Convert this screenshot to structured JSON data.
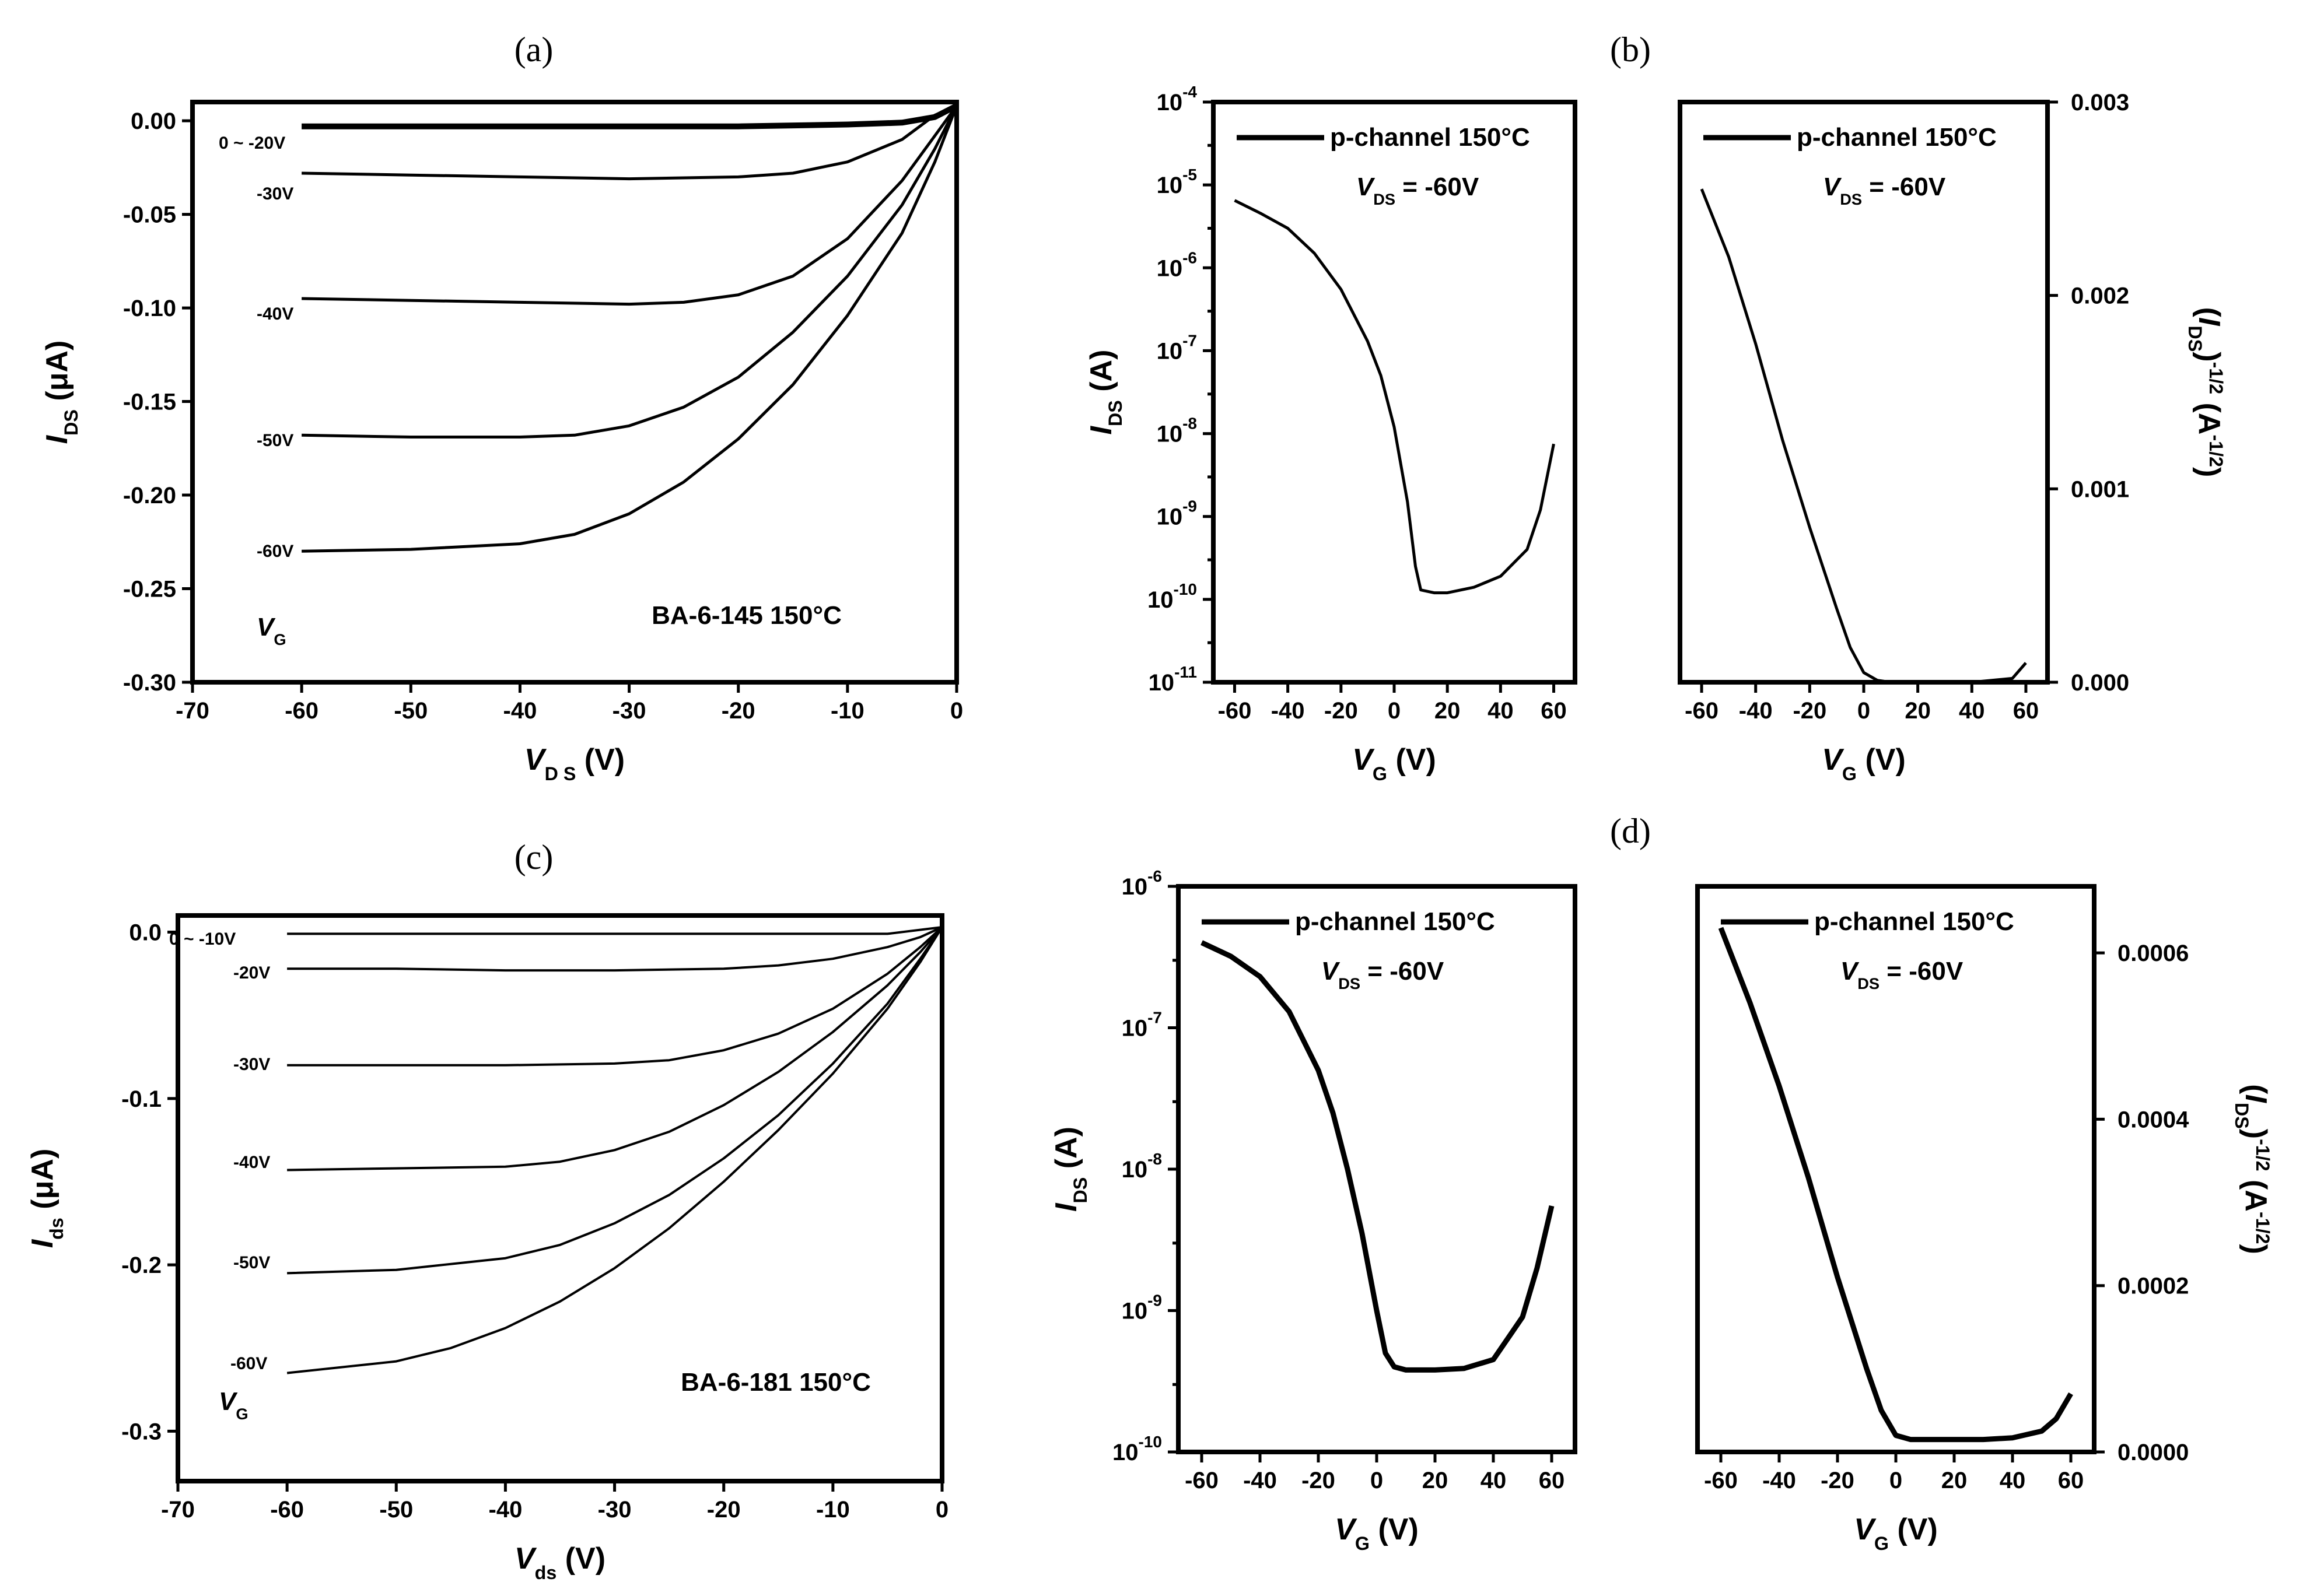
{
  "chart_data": [
    {
      "id": "a",
      "panel_label": "(a)",
      "type": "line",
      "title": "",
      "xlabel": {
        "main": "V",
        "sub": "D S",
        "unit": " (V)"
      },
      "ylabel": {
        "main": "I",
        "sub": "DS",
        "unit": " (μA)"
      },
      "xlim": [
        -70,
        0
      ],
      "ylim": [
        -0.3,
        0.01
      ],
      "xticks": [
        -70,
        -60,
        -50,
        -40,
        -30,
        -20,
        -10,
        0
      ],
      "xtick_labels": [
        "-70",
        "-60",
        "-50",
        "-40",
        "-30",
        "-20",
        "-10",
        "0"
      ],
      "yticks": [
        0.0,
        -0.05,
        -0.1,
        -0.15,
        -0.2,
        -0.25,
        -0.3
      ],
      "ytick_labels": [
        "0.00",
        "-0.05",
        "-0.10",
        "-0.15",
        "-0.20",
        "-0.25",
        "-0.30"
      ],
      "annotations": [
        "BA-6-145 150°C"
      ],
      "gate_label": {
        "main": "V",
        "sub": "G"
      },
      "series": [
        {
          "name": "0 ~ -20V",
          "x": [
            -60,
            -50,
            -40,
            -30,
            -20,
            -10,
            -5,
            -2,
            0
          ],
          "y": [
            -0.003,
            -0.003,
            -0.003,
            -0.003,
            -0.003,
            -0.002,
            -0.001,
            0.002,
            0.008
          ]
        },
        {
          "name": "-30V",
          "x": [
            -60,
            -50,
            -40,
            -30,
            -20,
            -15,
            -10,
            -5,
            -2,
            0
          ],
          "y": [
            -0.028,
            -0.029,
            -0.03,
            -0.031,
            -0.03,
            -0.028,
            -0.022,
            -0.01,
            0.003,
            0.008
          ]
        },
        {
          "name": "-40V",
          "x": [
            -60,
            -50,
            -40,
            -30,
            -25,
            -20,
            -15,
            -10,
            -5,
            -2,
            0
          ],
          "y": [
            -0.095,
            -0.096,
            -0.097,
            -0.098,
            -0.097,
            -0.093,
            -0.083,
            -0.063,
            -0.032,
            -0.008,
            0.008
          ]
        },
        {
          "name": "-50V",
          "x": [
            -60,
            -50,
            -40,
            -35,
            -30,
            -25,
            -20,
            -15,
            -10,
            -5,
            -2,
            0
          ],
          "y": [
            -0.168,
            -0.169,
            -0.169,
            -0.168,
            -0.163,
            -0.153,
            -0.137,
            -0.113,
            -0.083,
            -0.045,
            -0.015,
            0.008
          ]
        },
        {
          "name": "-60V",
          "x": [
            -60,
            -50,
            -40,
            -35,
            -30,
            -25,
            -20,
            -15,
            -10,
            -5,
            -2,
            0
          ],
          "y": [
            -0.23,
            -0.229,
            -0.226,
            -0.221,
            -0.21,
            -0.193,
            -0.17,
            -0.141,
            -0.104,
            -0.06,
            -0.022,
            0.008
          ]
        }
      ]
    },
    {
      "id": "b-left",
      "panel_label": "(b)",
      "type": "line",
      "title": "",
      "xlabel": {
        "main": "V",
        "sub": "G",
        "unit": " (V)"
      },
      "ylabel": {
        "main": "I",
        "sub": "DS",
        "unit": " (A)"
      },
      "yscale": "log",
      "xlim": [
        -68,
        68
      ],
      "ylim_exp": [
        -11,
        -4
      ],
      "xticks": [
        -60,
        -40,
        -20,
        0,
        20,
        40,
        60
      ],
      "xtick_labels": [
        "-60",
        "-40",
        "-20",
        "0",
        "20",
        "40",
        "60"
      ],
      "yticks_exp": [
        -11,
        -10,
        -9,
        -8,
        -7,
        -6,
        -5,
        -4
      ],
      "ytick_labels": [
        "-11",
        "-10",
        "-9",
        "-8",
        "-7",
        "-6",
        "-5",
        "-4"
      ],
      "ytick_base": "10",
      "legend": "p-channel 150°C",
      "annotation": {
        "main": "V",
        "sub": "DS",
        "rest": " = -60V"
      },
      "series": [
        {
          "name": "p-channel 150°C",
          "x": [
            -60,
            -50,
            -40,
            -30,
            -20,
            -10,
            -5,
            0,
            5,
            8,
            10,
            15,
            20,
            30,
            40,
            50,
            55,
            60
          ],
          "y": [
            6.5e-06,
            4.5e-06,
            3e-06,
            1.5e-06,
            5.5e-07,
            1.3e-07,
            5e-08,
            1.2e-08,
            1.5e-09,
            2.5e-10,
            1.3e-10,
            1.2e-10,
            1.2e-10,
            1.4e-10,
            1.9e-10,
            4e-10,
            1.2e-09,
            7.5e-09
          ]
        }
      ]
    },
    {
      "id": "b-right",
      "panel_label": "",
      "type": "line",
      "title": "",
      "xlabel": {
        "main": "V",
        "sub": "G",
        "unit": " (V)"
      },
      "ylabel": {
        "open": "(",
        "main": "I",
        "sub": "DS",
        "close": ")",
        "sup": "-1/2",
        "unit": " (A",
        "unit_sup": "-1/2",
        "unit_close": ")"
      },
      "yaxis_side": "right",
      "xlim": [
        -68,
        68
      ],
      "ylim": [
        0,
        0.003
      ],
      "xticks": [
        -60,
        -40,
        -20,
        0,
        20,
        40,
        60
      ],
      "xtick_labels": [
        "-60",
        "-40",
        "-20",
        "0",
        "20",
        "40",
        "60"
      ],
      "yticks": [
        0.0,
        0.001,
        0.002,
        0.003
      ],
      "ytick_labels": [
        "0.000",
        "0.001",
        "0.002",
        "0.003"
      ],
      "legend": "p-channel 150°C",
      "annotation": {
        "main": "V",
        "sub": "DS",
        "rest": " = -60V"
      },
      "series": [
        {
          "name": "p-channel 150°C",
          "x": [
            -60,
            -50,
            -40,
            -30,
            -20,
            -10,
            -5,
            0,
            5,
            10,
            20,
            40,
            55,
            60
          ],
          "y": [
            0.00255,
            0.0022,
            0.00175,
            0.00125,
            0.0008,
            0.00038,
            0.00018,
            5e-05,
            1e-05,
            0.0,
            0.0,
            0.0,
            2e-05,
            0.0001
          ]
        }
      ]
    },
    {
      "id": "c",
      "panel_label": "(c)",
      "type": "line",
      "title": "",
      "xlabel": {
        "main": "V",
        "sub": "ds",
        "unit": " (V)"
      },
      "ylabel": {
        "main": "I",
        "sub": "ds",
        "unit": " (μA)"
      },
      "xlim": [
        -70,
        0
      ],
      "ylim": [
        -0.33,
        0.01
      ],
      "xticks": [
        -70,
        -60,
        -50,
        -40,
        -30,
        -20,
        -10,
        0
      ],
      "xtick_labels": [
        "-70",
        "-60",
        "-50",
        "-40",
        "-30",
        "-20",
        "-10",
        "0"
      ],
      "yticks": [
        0.0,
        -0.1,
        -0.2,
        -0.3
      ],
      "ytick_labels": [
        "0.0",
        "-0.1",
        "-0.2",
        "-0.3"
      ],
      "annotations": [
        "BA-6-181 150°C"
      ],
      "gate_label": {
        "main": "V",
        "sub": "G"
      },
      "series": [
        {
          "name": "0 ~ -10V",
          "x": [
            -60,
            -50,
            -40,
            -30,
            -20,
            -10,
            -5,
            0
          ],
          "y": [
            -0.001,
            -0.001,
            -0.001,
            -0.001,
            -0.001,
            -0.001,
            -0.001,
            0.003
          ]
        },
        {
          "name": "-20V",
          "x": [
            -60,
            -50,
            -40,
            -30,
            -20,
            -15,
            -10,
            -5,
            -2,
            0
          ],
          "y": [
            -0.022,
            -0.022,
            -0.023,
            -0.023,
            -0.022,
            -0.02,
            -0.016,
            -0.009,
            -0.003,
            0.003
          ]
        },
        {
          "name": "-30V",
          "x": [
            -60,
            -50,
            -40,
            -30,
            -25,
            -20,
            -15,
            -10,
            -5,
            -2,
            0
          ],
          "y": [
            -0.08,
            -0.08,
            -0.08,
            -0.079,
            -0.077,
            -0.071,
            -0.061,
            -0.046,
            -0.025,
            -0.009,
            0.003
          ]
        },
        {
          "name": "-40V",
          "x": [
            -60,
            -50,
            -40,
            -35,
            -30,
            -25,
            -20,
            -15,
            -10,
            -5,
            -2,
            0
          ],
          "y": [
            -0.143,
            -0.142,
            -0.141,
            -0.138,
            -0.131,
            -0.12,
            -0.104,
            -0.084,
            -0.06,
            -0.032,
            -0.012,
            0.003
          ]
        },
        {
          "name": "-50V",
          "x": [
            -60,
            -50,
            -40,
            -35,
            -30,
            -25,
            -20,
            -15,
            -10,
            -5,
            -2,
            0
          ],
          "y": [
            -0.205,
            -0.203,
            -0.196,
            -0.188,
            -0.175,
            -0.158,
            -0.136,
            -0.11,
            -0.079,
            -0.043,
            -0.016,
            0.003
          ]
        },
        {
          "name": "-60V",
          "x": [
            -60,
            -50,
            -45,
            -40,
            -35,
            -30,
            -25,
            -20,
            -15,
            -10,
            -5,
            -2,
            0
          ],
          "y": [
            -0.265,
            -0.258,
            -0.25,
            -0.238,
            -0.222,
            -0.202,
            -0.178,
            -0.15,
            -0.119,
            -0.085,
            -0.046,
            -0.018,
            0.003
          ]
        }
      ]
    },
    {
      "id": "d-left",
      "panel_label": "(d)",
      "type": "line",
      "title": "",
      "xlabel": {
        "main": "V",
        "sub": "G",
        "unit": " (V)"
      },
      "ylabel": {
        "main": "I",
        "sub": "DS",
        "unit": " (A)"
      },
      "yscale": "log",
      "xlim": [
        -68,
        68
      ],
      "ylim_exp": [
        -10,
        -6
      ],
      "xticks": [
        -60,
        -40,
        -20,
        0,
        20,
        40,
        60
      ],
      "xtick_labels": [
        "-60",
        "-40",
        "-20",
        "0",
        "20",
        "40",
        "60"
      ],
      "yticks_exp": [
        -10,
        -9,
        -8,
        -7,
        -6
      ],
      "ytick_labels": [
        "-10",
        "-9",
        "-8",
        "-7",
        "-6"
      ],
      "ytick_base": "10",
      "legend": "p-channel 150°C",
      "annotation": {
        "main": "V",
        "sub": "DS",
        "rest": " = -60V"
      },
      "series": [
        {
          "name": "p-channel 150°C",
          "x": [
            -60,
            -50,
            -40,
            -30,
            -20,
            -15,
            -10,
            -5,
            0,
            3,
            6,
            10,
            20,
            30,
            40,
            50,
            55,
            60
          ],
          "y": [
            4e-07,
            3.2e-07,
            2.3e-07,
            1.3e-07,
            5e-08,
            2.5e-08,
            1e-08,
            3.5e-09,
            1e-09,
            5e-10,
            4e-10,
            3.8e-10,
            3.8e-10,
            3.9e-10,
            4.5e-10,
            9e-10,
            2e-09,
            5.5e-09
          ]
        }
      ]
    },
    {
      "id": "d-right",
      "panel_label": "",
      "type": "line",
      "title": "",
      "xlabel": {
        "main": "V",
        "sub": "G",
        "unit": " (V)"
      },
      "ylabel": {
        "open": "(",
        "main": "I",
        "sub": "DS",
        "close": ")",
        "sup": "-1/2",
        "unit": " (A",
        "unit_sup": "-1/2",
        "unit_close": ")"
      },
      "yaxis_side": "right",
      "xlim": [
        -68,
        68
      ],
      "ylim": [
        0,
        0.00068
      ],
      "xticks": [
        -60,
        -40,
        -20,
        0,
        20,
        40,
        60
      ],
      "xtick_labels": [
        "-60",
        "-40",
        "-20",
        "0",
        "20",
        "40",
        "60"
      ],
      "yticks": [
        0.0,
        0.0002,
        0.0004,
        0.0006
      ],
      "ytick_labels": [
        "0.0000",
        "0.0002",
        "0.0004",
        "0.0006"
      ],
      "legend": "p-channel 150°C",
      "annotation": {
        "main": "V",
        "sub": "DS",
        "rest": " = -60V"
      },
      "series": [
        {
          "name": "p-channel 150°C",
          "x": [
            -60,
            -50,
            -40,
            -30,
            -20,
            -10,
            -5,
            0,
            5,
            10,
            20,
            30,
            40,
            50,
            55,
            60
          ],
          "y": [
            0.00063,
            0.00054,
            0.00044,
            0.00033,
            0.00021,
            0.0001,
            5e-05,
            2e-05,
            1.5e-05,
            1.5e-05,
            1.5e-05,
            1.5e-05,
            1.7e-05,
            2.5e-05,
            4e-05,
            7e-05
          ]
        }
      ]
    }
  ],
  "curve_labels": {
    "a": [
      "0 ~ -20V",
      "-30V",
      "-40V",
      "-50V",
      "-60V"
    ],
    "c": [
      "0 ~ -10V",
      "-20V",
      "-30V",
      "-40V",
      "-50V",
      "-60V"
    ]
  }
}
